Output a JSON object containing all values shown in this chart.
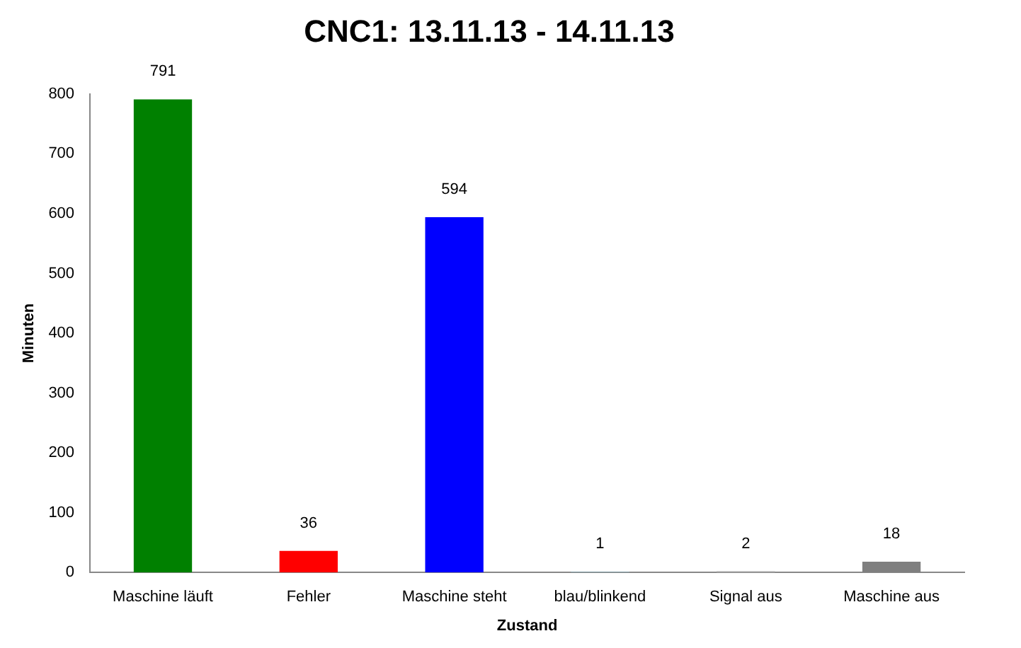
{
  "chart_data": {
    "type": "bar",
    "title": "CNC1: 13.11.13 - 14.11.13",
    "xlabel": "Zustand",
    "ylabel": "Minuten",
    "categories": [
      "Maschine läuft",
      "Fehler",
      "Maschine steht",
      "blau/blinkend",
      "Signal aus",
      "Maschine aus"
    ],
    "values": [
      791,
      36,
      594,
      1,
      2,
      18
    ],
    "colors": [
      "#008000",
      "#ff0000",
      "#0000ff",
      "#87a9b5",
      "#a6a6a6",
      "#7f7f7f"
    ],
    "ylim": [
      0,
      800
    ],
    "yticks": [
      0,
      100,
      200,
      300,
      400,
      500,
      600,
      700,
      800
    ],
    "grid": false,
    "legend": false,
    "data_labels": true
  }
}
